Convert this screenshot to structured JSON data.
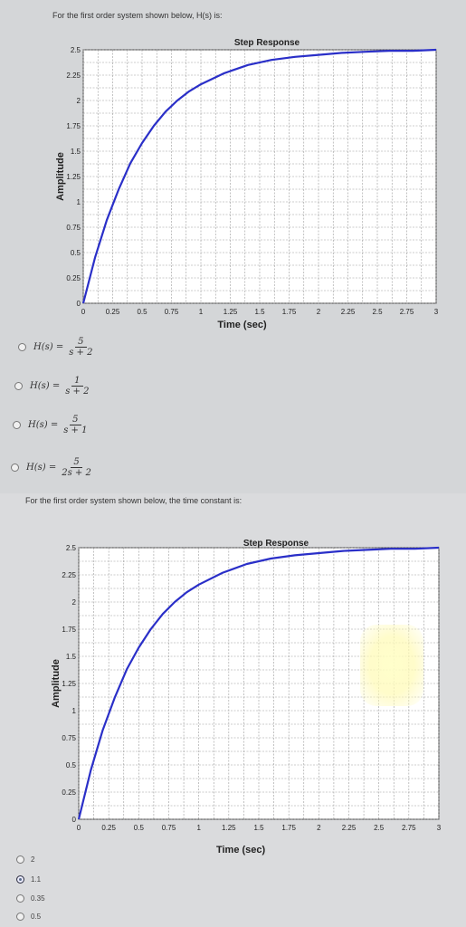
{
  "question1": {
    "text": "For the first order system shown below, H(s) is:"
  },
  "question2": {
    "text": "For the first order system shown below, the time constant is:"
  },
  "chart_data": [
    {
      "type": "line",
      "title": "Step Response",
      "xlabel": "Time (sec)",
      "ylabel": "Amplitude",
      "xlim": [
        0,
        3
      ],
      "ylim": [
        0,
        2.5
      ],
      "xticks": [
        0,
        0.25,
        0.5,
        0.75,
        1,
        1.25,
        1.5,
        1.75,
        2,
        2.25,
        2.5,
        2.75,
        3
      ],
      "yticks": [
        0,
        0.25,
        0.5,
        0.75,
        1,
        1.25,
        1.5,
        1.75,
        2,
        2.25,
        2.5
      ],
      "xtick_labels": [
        "0",
        "0.25",
        "0.5",
        "0.75",
        "1",
        "1.25",
        "1.5",
        "1.75",
        "2",
        "2.25",
        "2.5",
        "2.75",
        "3"
      ],
      "ytick_labels": [
        "0",
        "0.25",
        "0.5",
        "0.75",
        "1",
        "1.25",
        "1.5",
        "1.75",
        "2",
        "2.25",
        "2.5"
      ],
      "grid": true,
      "series": [
        {
          "color": "#2a2fc8",
          "x": [
            0,
            0.1,
            0.2,
            0.3,
            0.4,
            0.5,
            0.6,
            0.7,
            0.8,
            0.9,
            1.0,
            1.2,
            1.4,
            1.6,
            1.8,
            2.0,
            2.2,
            2.4,
            2.6,
            2.8,
            3.0
          ],
          "y": [
            0,
            0.45,
            0.82,
            1.12,
            1.38,
            1.58,
            1.75,
            1.89,
            2.0,
            2.09,
            2.16,
            2.27,
            2.35,
            2.4,
            2.43,
            2.45,
            2.47,
            2.48,
            2.49,
            2.49,
            2.5
          ]
        }
      ]
    },
    {
      "type": "line",
      "title": "Step Response",
      "xlabel": "Time (sec)",
      "ylabel": "Amplitude",
      "xlim": [
        0,
        3
      ],
      "ylim": [
        0,
        2.5
      ],
      "xticks": [
        0,
        0.25,
        0.5,
        0.75,
        1,
        1.25,
        1.5,
        1.75,
        2,
        2.25,
        2.5,
        2.75,
        3
      ],
      "yticks": [
        0,
        0.25,
        0.5,
        0.75,
        1,
        1.25,
        1.5,
        1.75,
        2,
        2.25,
        2.5
      ],
      "xtick_labels": [
        "0",
        "0.25",
        "0.5",
        "0.75",
        "1",
        "1.25",
        "1.5",
        "1.75",
        "2",
        "2.25",
        "2.5",
        "2.75",
        "3"
      ],
      "ytick_labels": [
        "0",
        "0.25",
        "0.5",
        "0.75",
        "1",
        "1.25",
        "1.5",
        "1.75",
        "2",
        "2.25",
        "2.5"
      ],
      "grid": true,
      "series": [
        {
          "color": "#2a2fc8",
          "x": [
            0,
            0.1,
            0.2,
            0.3,
            0.4,
            0.5,
            0.6,
            0.7,
            0.8,
            0.9,
            1.0,
            1.2,
            1.4,
            1.6,
            1.8,
            2.0,
            2.2,
            2.4,
            2.6,
            2.8,
            3.0
          ],
          "y": [
            0,
            0.45,
            0.82,
            1.12,
            1.38,
            1.58,
            1.75,
            1.89,
            2.0,
            2.09,
            2.16,
            2.27,
            2.35,
            2.4,
            2.43,
            2.45,
            2.47,
            2.48,
            2.49,
            2.49,
            2.5
          ]
        }
      ]
    }
  ],
  "options1": [
    {
      "prefix": "H(s) =",
      "num": "5",
      "den": "s + 2"
    },
    {
      "prefix": "H(s) =",
      "num": "1",
      "den": "s + 2"
    },
    {
      "prefix": "H(s) =",
      "num": "5",
      "den": "s + 1"
    },
    {
      "prefix": "H(s) =",
      "num": "5",
      "den": "2s + 2"
    }
  ],
  "options2": [
    {
      "label": "2",
      "checked": false
    },
    {
      "label": "1.1",
      "checked": true
    },
    {
      "label": "0.35",
      "checked": false
    },
    {
      "label": "0.5",
      "checked": false
    }
  ]
}
